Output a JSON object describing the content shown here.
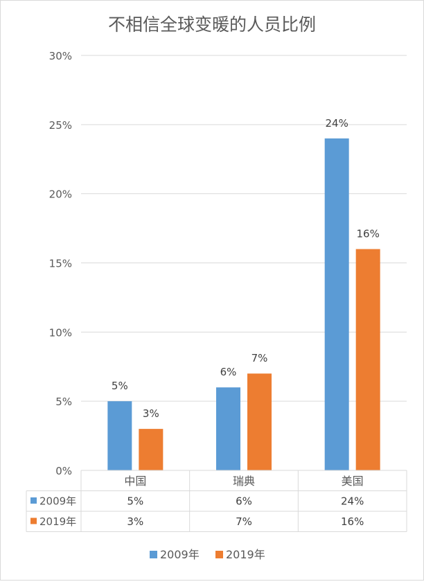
{
  "chart_data": {
    "type": "bar",
    "title": "不相信全球变暖的人员比例",
    "categories": [
      "中国",
      "瑞典",
      "美国"
    ],
    "series": [
      {
        "name": "2009年",
        "color": "#5B9BD5",
        "values": [
          5,
          6,
          24
        ],
        "labels": [
          "5%",
          "6%",
          "24%"
        ]
      },
      {
        "name": "2019年",
        "color": "#ED7D31",
        "values": [
          3,
          7,
          16
        ],
        "labels": [
          "3%",
          "7%",
          "16%"
        ]
      }
    ],
    "y_ticks": [
      "0%",
      "5%",
      "10%",
      "15%",
      "20%",
      "25%",
      "30%"
    ],
    "ylim": [
      0,
      30
    ],
    "grid": true,
    "legend_position": "bottom",
    "data_table": true
  }
}
